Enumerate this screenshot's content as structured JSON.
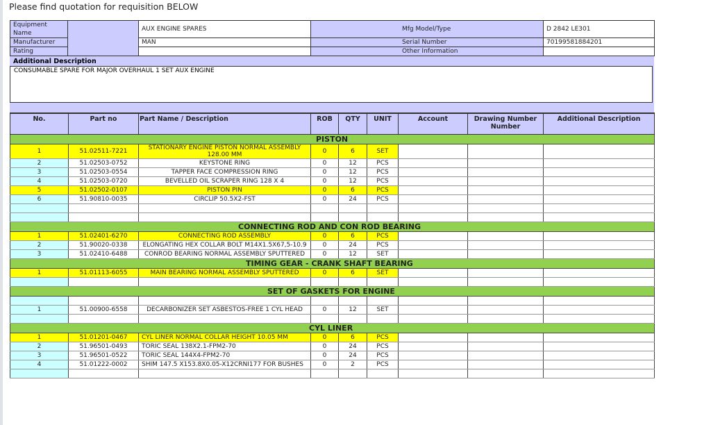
{
  "title": "Please find quotation for requisition BELOW",
  "equipment": {
    "labels": [
      "Equipment Name",
      "Manufacturer",
      "Rating"
    ],
    "values": [
      "AUX ENGINE SPARES",
      "MAN",
      ""
    ],
    "labels2": [
      "Mfg Model/Type",
      "Serial Number",
      "Other Information"
    ],
    "values2": [
      "D 2842 LE301",
      "70199581884201",
      ""
    ]
  },
  "additional": {
    "label": "Additional Description",
    "text": "CONSUMABLE SPARE FOR MAJOR OVERHAUL  1 SET AUX ENGINE"
  },
  "columns": [
    "No.",
    "Part no",
    "Part Name / Description",
    "ROB",
    "QTY",
    "UNIT",
    "Account",
    "Drawing Number Number",
    "Additional Description"
  ],
  "colors": {
    "header": "#ccccff",
    "section": "#92d050",
    "highlight": "#ffff00",
    "no_column": "#ccffff"
  },
  "sections": [
    {
      "title": "PISTON",
      "rows": [
        {
          "no": "1",
          "part": "51.02511-7221",
          "desc": "STATIONARY ENGINE PISTON NORMAL ASSEMBLY 128.00 MM",
          "rob": "0",
          "qty": "6",
          "unit": "SET",
          "highlight": true
        },
        {
          "no": "2",
          "part": "51.02503-0752",
          "desc": "KEYSTONE RING",
          "rob": "0",
          "qty": "12",
          "unit": "PCS"
        },
        {
          "no": "3",
          "part": "51.02503-0554",
          "desc": "TAPPER  FACE COMPRESSION RING",
          "rob": "0",
          "qty": "12",
          "unit": "PCS"
        },
        {
          "no": "4",
          "part": "51.02503-0720",
          "desc": "BEVELLED OIL SCRAPER RING 128 X 4",
          "rob": "0",
          "qty": "12",
          "unit": "PCS"
        },
        {
          "no": "5",
          "part": "51.02502-0107",
          "desc": "PISTON PIN",
          "rob": "0",
          "qty": "6",
          "unit": "PCS",
          "highlight": true
        },
        {
          "no": "6",
          "part": "51.90810-0035",
          "desc": "CIRCLIP 50.5X2-FST",
          "rob": "0",
          "qty": "24",
          "unit": "PCS"
        },
        {},
        {}
      ]
    },
    {
      "title": "CONNECTING ROD AND CON ROD BEARING",
      "rows": [
        {
          "no": "1",
          "part": "51.02401-6270",
          "desc": "CONNECTING ROD ASSEMBLY",
          "rob": "0",
          "qty": "6",
          "unit": "PCS",
          "highlight": true
        },
        {
          "no": "2",
          "part": "51.90020-0338",
          "desc": "ELONGATING HEX COLLAR BOLT M14X1.5X67,5-10.9",
          "rob": "0",
          "qty": "24",
          "unit": "PCS"
        },
        {
          "no": "3",
          "part": "51.02410-6488",
          "desc": "CONROD BEARING NORMAL ASSEMBLY SPUTTERED",
          "rob": "0",
          "qty": "12",
          "unit": "SET"
        }
      ]
    },
    {
      "title": "TIMING GEAR - CRANK SHAFT BEARING",
      "rows": [
        {
          "no": "1",
          "part": "51.01113-6055",
          "desc": "MAIN BEARING NORMAL ASSEMBLY SPUTTERED",
          "rob": "0",
          "qty": "6",
          "unit": "SET",
          "highlight": true
        },
        {}
      ]
    },
    {
      "title": "SET OF GASKETS FOR ENGINE",
      "rows": [
        {},
        {
          "no": "1",
          "part": "51.00900-6558",
          "desc": "DECARBONIZER SET ASBESTOS-FREE 1 CYL HEAD",
          "rob": "0",
          "qty": "12",
          "unit": "SET"
        },
        {}
      ]
    },
    {
      "title": "CYL LINER",
      "rows": [
        {
          "no": "1",
          "part": "51.01201-0467",
          "desc": "CYL LINER NORMAL COLLAR HEIGHT 10.05 MM",
          "rob": "0",
          "qty": "6",
          "unit": "PCS",
          "highlight": true,
          "left": true
        },
        {
          "no": "2",
          "part": "51.96501-0493",
          "desc": "TORIC SEAL 138X2.1-FPM2-70",
          "rob": "0",
          "qty": "24",
          "unit": "PCS",
          "left": true
        },
        {
          "no": "3",
          "part": "51.96501-0522",
          "desc": "TORIC SEAL 144X4-FPM2-70",
          "rob": "0",
          "qty": "24",
          "unit": "PCS",
          "left": true
        },
        {
          "no": "4",
          "part": "51.01222-0002",
          "desc": "SHIM 147.5 X153.8X0.05-X12CRNI177 FOR BUSHES",
          "rob": "0",
          "qty": "2",
          "unit": "PCS",
          "left": true
        },
        {}
      ]
    }
  ]
}
